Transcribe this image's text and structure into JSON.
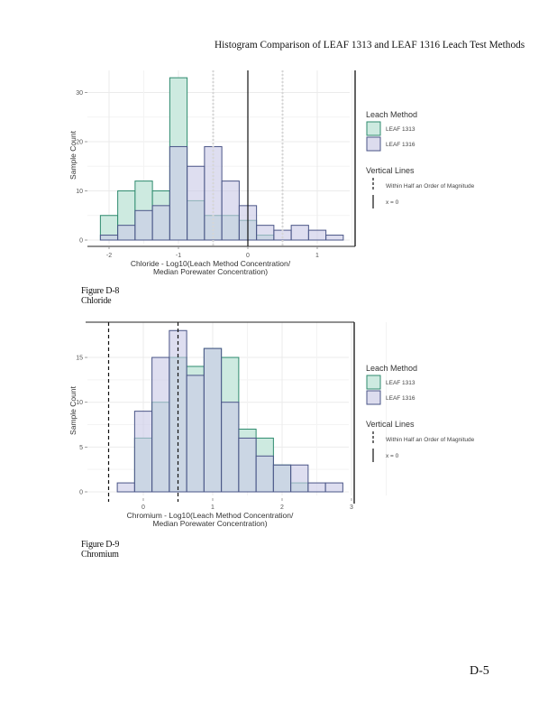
{
  "page": {
    "header": "Histogram Comparison of LEAF 1313 and LEAF 1316 Leach Test Methods",
    "page_number": "D-5"
  },
  "colors": {
    "leaf1313_fill": "#cdeae0",
    "leaf1313_stroke": "#2e8b6e",
    "leaf1316_fill": "#dcdcee",
    "leaf1316_stroke": "#4a5587",
    "overlap_fill": "#bccbd6",
    "grid": "#ebebeb"
  },
  "figures": [
    {
      "caption_line1": "Figure D-8",
      "caption_line2": "Chloride"
    },
    {
      "caption_line1": "Figure D-9",
      "caption_line2": "Chromium"
    }
  ],
  "chart_data": [
    {
      "type": "bar",
      "title": "",
      "xlabel": "Chloride - Log10(Leach Method Concentration/ Median Porewater Concentration)",
      "xlabel_line1": "Chloride - Log10(Leach Method Concentration/",
      "xlabel_line2": "Median Porewater Concentration)",
      "ylabel": "Sample Count",
      "xlim": [
        -2.25,
        1.5
      ],
      "ylim": [
        0,
        34
      ],
      "xticks": [
        -2,
        -1,
        0,
        1
      ],
      "yticks": [
        0,
        10,
        20,
        30
      ],
      "grid": true,
      "bin_width": 0.25,
      "bin_start": -2.125,
      "vlines": {
        "dashed": [
          -0.5,
          0.5
        ],
        "dashed_style": "faint",
        "solid": [
          0
        ]
      },
      "series": [
        {
          "name": "LEAF 1313",
          "values": [
            5,
            10,
            12,
            10,
            33,
            8,
            5,
            5,
            4,
            1,
            0,
            0,
            0,
            0
          ]
        },
        {
          "name": "LEAF 1316",
          "values": [
            1,
            3,
            6,
            7,
            19,
            15,
            19,
            12,
            7,
            3,
            2,
            3,
            2,
            1
          ]
        }
      ],
      "legend": {
        "position": "right",
        "fill_title": "Leach Method",
        "fill_items": [
          "LEAF 1313",
          "LEAF 1316"
        ],
        "line_title": "Vertical Lines",
        "line_items": [
          "Within Half an Order of Magnitude",
          "x = 0"
        ]
      }
    },
    {
      "type": "bar",
      "title": "",
      "xlabel": "Chromium - Log10(Leach Method Concentration/ Median Porewater Concentration)",
      "xlabel_line1": "Chromium - Log10(Leach Method Concentration/",
      "xlabel_line2": "Median Porewater Concentration)",
      "ylabel": "Sample Count",
      "xlim": [
        -0.55,
        3.0
      ],
      "ylim": [
        0,
        18
      ],
      "xticks": [
        0,
        1,
        2,
        3
      ],
      "yticks": [
        0,
        5,
        10,
        15
      ],
      "grid": true,
      "bin_width": 0.25,
      "bin_start": -0.375,
      "vlines": {
        "dashed": [
          -0.5,
          0.5
        ],
        "dashed_style": "bold",
        "solid": []
      },
      "series": [
        {
          "name": "LEAF 1313",
          "values": [
            0,
            6,
            10,
            15,
            14,
            16,
            15,
            7,
            6,
            3,
            1,
            0,
            0
          ]
        },
        {
          "name": "LEAF 1316",
          "values": [
            1,
            9,
            15,
            18,
            13,
            16,
            10,
            6,
            4,
            3,
            3,
            1,
            1
          ]
        }
      ],
      "legend": {
        "position": "right",
        "fill_title": "Leach Method",
        "fill_items": [
          "LEAF 1313",
          "LEAF 1316"
        ],
        "line_title": "Vertical Lines",
        "line_items": [
          "Within Half an Order of Magnitude",
          "x = 0"
        ]
      }
    }
  ]
}
